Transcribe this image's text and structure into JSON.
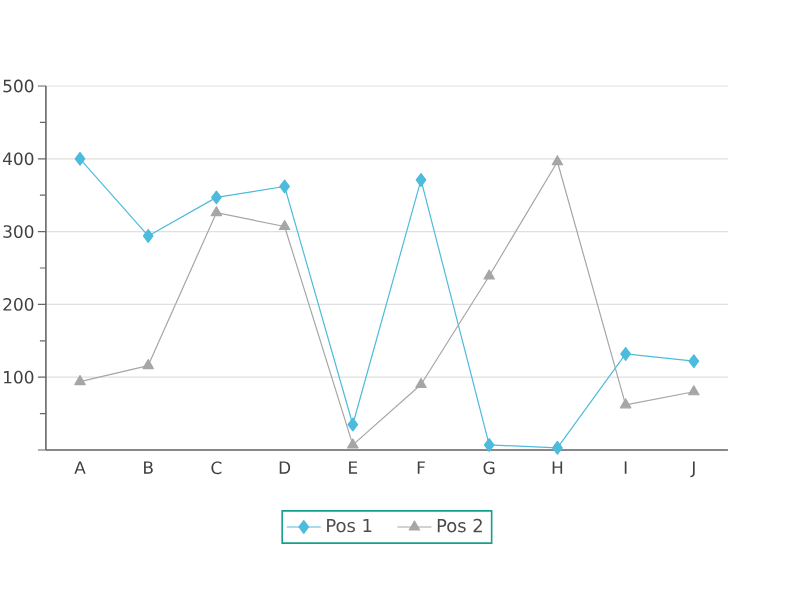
{
  "chart_data": {
    "type": "line",
    "categories": [
      "A",
      "B",
      "C",
      "D",
      "E",
      "F",
      "G",
      "H",
      "I",
      "J"
    ],
    "series": [
      {
        "name": "Pos 1",
        "color": "#4dbbdc",
        "marker": "diamond",
        "values": [
          400,
          294,
          347,
          362,
          35,
          371,
          7,
          3,
          132,
          122
        ]
      },
      {
        "name": "Pos 2",
        "color": "#a6a6a6",
        "marker": "triangle",
        "values": [
          94,
          116,
          326,
          307,
          7,
          90,
          239,
          396,
          62,
          80
        ]
      }
    ],
    "ylim": [
      0,
      500
    ],
    "yticks": [
      {
        "value": 0,
        "label": null
      },
      100,
      200,
      300,
      400,
      500
    ],
    "grid": "y",
    "legend": "bottom",
    "line_style": "solid"
  }
}
